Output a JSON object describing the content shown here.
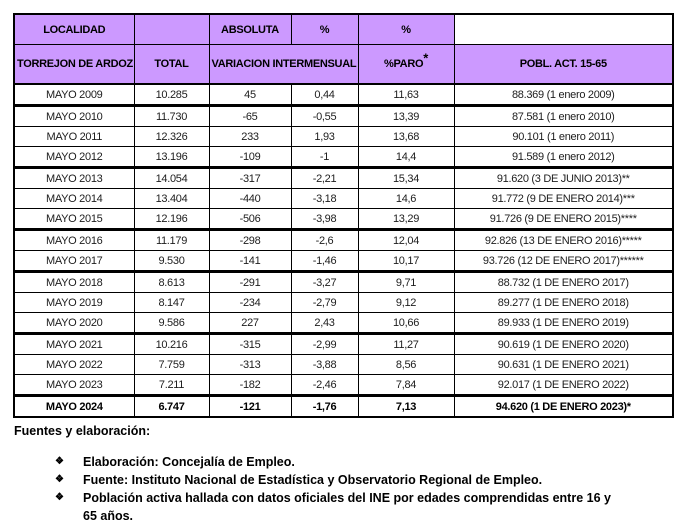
{
  "colors": {
    "header_fill": "#CC99FF",
    "border": "#000000"
  },
  "table": {
    "header_row1": {
      "localidad": "LOCALIDAD",
      "blank_total": "",
      "absoluta": "ABSOLUTA",
      "pct_left": "%",
      "pct_right": "%",
      "blank_white": ""
    },
    "header_row2": {
      "municipio": "TORREJON DE ARDOZ",
      "total": "TOTAL",
      "variacion": "VARIACION INTERMENSUAL",
      "paro": "%PARO",
      "paro_sup": "*",
      "pobl": "POBL. ACT. 15-65"
    },
    "rows": [
      {
        "mes": "MAYO 2009",
        "total": "10.285",
        "absoluta": "45",
        "pct": "0,44",
        "paro": "11,63",
        "pobl": "88.369 (1 enero 2009)",
        "group_end": true
      },
      {
        "mes": "MAYO 2010",
        "total": "11.730",
        "absoluta": "-65",
        "pct": "-0,55",
        "paro": "13,39",
        "pobl": "87.581 (1 enero 2010)"
      },
      {
        "mes": "MAYO 2011",
        "total": "12.326",
        "absoluta": "233",
        "pct": "1,93",
        "paro": "13,68",
        "pobl": "90.101 (1 enero 2011)"
      },
      {
        "mes": "MAYO 2012",
        "total": "13.196",
        "absoluta": "-109",
        "pct": "-1",
        "paro": "14,4",
        "pobl": "91.589 (1 enero 2012)",
        "group_end": true
      },
      {
        "mes": "MAYO 2013",
        "total": "14.054",
        "absoluta": "-317",
        "pct": "-2,21",
        "paro": "15,34",
        "pobl": "91.620 (3 DE JUNIO 2013)**"
      },
      {
        "mes": "MAYO 2014",
        "total": "13.404",
        "absoluta": "-440",
        "pct": "-3,18",
        "paro": "14,6",
        "pobl": "91.772 (9 DE ENERO 2014)***"
      },
      {
        "mes": "MAYO 2015",
        "total": "12.196",
        "absoluta": "-506",
        "pct": "-3,98",
        "paro": "13,29",
        "pobl": "91.726 (9 DE ENERO 2015)****",
        "group_end": true
      },
      {
        "mes": "MAYO 2016",
        "total": "11.179",
        "absoluta": "-298",
        "pct": "-2,6",
        "paro": "12,04",
        "pobl": "92.826 (13 DE ENERO 2016)*****"
      },
      {
        "mes": "MAYO 2017",
        "total": "9.530",
        "absoluta": "-141",
        "pct": "-1,46",
        "paro": "10,17",
        "pobl": "93.726 (12 DE ENERO 2017)******",
        "group_end": true
      },
      {
        "mes": "MAYO 2018",
        "total": "8.613",
        "absoluta": "-291",
        "pct": "-3,27",
        "paro": "9,71",
        "pobl": "88.732 (1 DE ENERO 2017)"
      },
      {
        "mes": "MAYO 2019",
        "total": "8.147",
        "absoluta": "-234",
        "pct": "-2,79",
        "paro": "9,12",
        "pobl": "89.277 (1 DE ENERO 2018)"
      },
      {
        "mes": "MAYO 2020",
        "total": "9.586",
        "absoluta": "227",
        "pct": "2,43",
        "paro": "10,66",
        "pobl": "89.933 (1 DE ENERO 2019)",
        "group_end": true
      },
      {
        "mes": "MAYO 2021",
        "total": "10.216",
        "absoluta": "-315",
        "pct": "-2,99",
        "paro": "11,27",
        "pobl": "90.619 (1 DE ENERO 2020)"
      },
      {
        "mes": "MAYO 2022",
        "total": "7.759",
        "absoluta": "-313",
        "pct": "-3,88",
        "paro": "8,56",
        "pobl": "90.631 (1 DE ENERO 2021)"
      },
      {
        "mes": "MAYO 2023",
        "total": "7.211",
        "absoluta": "-182",
        "pct": "-2,46",
        "paro": "7,84",
        "pobl": "92.017 (1 DE ENERO 2022)",
        "group_end": true
      },
      {
        "mes": "MAYO 2024",
        "total": "6.747",
        "absoluta": "-121",
        "pct": "-1,76",
        "paro": "7,13",
        "pobl": "94.620 (1 DE ENERO 2023)*",
        "emphasis": true
      }
    ]
  },
  "footer": {
    "title": "Fuentes y elaboración:",
    "bullet_icon": "❖",
    "bullets": [
      {
        "lines": [
          "Elaboración: Concejalía de Empleo."
        ]
      },
      {
        "lines": [
          "Fuente: Instituto Nacional de Estadística y Observatorio Regional de Empleo."
        ]
      },
      {
        "lines": [
          "Población activa hallada con datos oficiales del INE por edades comprendidas entre 16 y",
          "65 años."
        ]
      }
    ]
  }
}
